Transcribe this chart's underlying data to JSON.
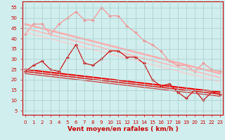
{
  "background_color": "#d0eeee",
  "grid_color": "#aacccc",
  "x_label": "Vent moyen/en rafales ( km/h )",
  "x_ticks": [
    0,
    1,
    2,
    3,
    4,
    5,
    6,
    7,
    8,
    9,
    10,
    11,
    12,
    13,
    14,
    15,
    16,
    17,
    18,
    19,
    20,
    21,
    22,
    23
  ],
  "y_ticks": [
    5,
    10,
    15,
    20,
    25,
    30,
    35,
    40,
    45,
    50,
    55
  ],
  "xlim": [
    -0.3,
    23.3
  ],
  "ylim": [
    3,
    58
  ],
  "series": [
    {
      "name": "light_zigzag",
      "color": "#ff8888",
      "linewidth": 0.8,
      "marker": "D",
      "markersize": 2.0,
      "x": [
        0,
        1,
        2,
        3,
        4,
        5,
        6,
        7,
        8,
        9,
        10,
        11,
        12,
        13,
        14,
        15,
        16,
        17,
        18,
        19,
        20,
        21,
        22,
        23
      ],
      "y": [
        42,
        47,
        47,
        42,
        47,
        50,
        53,
        49,
        49,
        55,
        51,
        51,
        46,
        43,
        39,
        37,
        34,
        29,
        27,
        27,
        24,
        28,
        25,
        24
      ]
    },
    {
      "name": "trend_dark_light1",
      "color": "#ffaaaa",
      "linewidth": 1.8,
      "marker": null,
      "x": [
        0,
        23
      ],
      "y": [
        47,
        23
      ]
    },
    {
      "name": "trend_dark_light2",
      "color": "#ffbbbb",
      "linewidth": 1.3,
      "marker": null,
      "x": [
        0,
        23
      ],
      "y": [
        45,
        21
      ]
    },
    {
      "name": "trend_dark_light3",
      "color": "#ffcccc",
      "linewidth": 1.0,
      "marker": null,
      "x": [
        0,
        23
      ],
      "y": [
        43,
        19
      ]
    },
    {
      "name": "dark_zigzag",
      "color": "#cc0000",
      "linewidth": 0.8,
      "marker": "D",
      "markersize": 2.0,
      "x": [
        0,
        1,
        2,
        3,
        4,
        5,
        6,
        7,
        8,
        9,
        10,
        11,
        12,
        13,
        14,
        15,
        16,
        17,
        18,
        19,
        20,
        21,
        22,
        23
      ],
      "y": [
        24,
        27,
        29,
        25,
        24,
        31,
        37,
        28,
        27,
        30,
        34,
        34,
        31,
        31,
        28,
        20,
        17,
        18,
        14,
        11,
        15,
        10,
        14,
        13
      ]
    },
    {
      "name": "trend_dark1",
      "color": "#ee0000",
      "linewidth": 1.5,
      "marker": null,
      "x": [
        0,
        23
      ],
      "y": [
        25,
        14
      ]
    },
    {
      "name": "trend_dark2",
      "color": "#dd1111",
      "linewidth": 1.1,
      "marker": null,
      "x": [
        0,
        23
      ],
      "y": [
        24,
        13
      ]
    },
    {
      "name": "trend_dark3",
      "color": "#cc2222",
      "linewidth": 0.8,
      "marker": null,
      "x": [
        0,
        23
      ],
      "y": [
        23,
        12
      ]
    }
  ],
  "tick_color": "#cc0000",
  "label_color": "#cc0000",
  "label_fontsize": 6.5,
  "tick_fontsize": 5.0
}
